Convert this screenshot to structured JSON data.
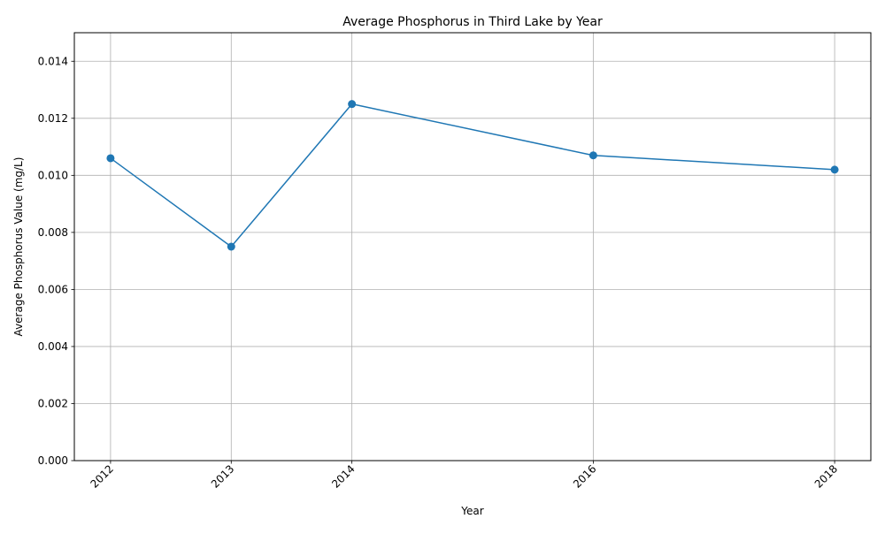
{
  "chart_data": {
    "type": "line",
    "title": "Average Phosphorus in Third Lake by Year",
    "xlabel": "Year",
    "ylabel": "Average Phosphorus Value (mg/L)",
    "x": [
      2012,
      2013,
      2014,
      2016,
      2018
    ],
    "series": [
      {
        "values": [
          0.0106,
          0.0075,
          0.0125,
          0.0107,
          0.0102
        ],
        "color": "#1f77b4",
        "marker": "circle"
      }
    ],
    "xlim": [
      2011.7,
      2018.3
    ],
    "ylim": [
      0,
      0.015
    ],
    "xticks": [
      2012,
      2013,
      2014,
      2016,
      2018
    ],
    "xtick_labels": [
      "2012",
      "2013",
      "2014",
      "2016",
      "2018"
    ],
    "yticks": [
      0,
      0.002,
      0.004,
      0.006,
      0.008,
      0.01,
      0.012,
      0.014
    ],
    "ytick_labels": [
      "0.000",
      "0.002",
      "0.004",
      "0.006",
      "0.008",
      "0.010",
      "0.012",
      "0.014"
    ],
    "grid": true,
    "legend": false
  }
}
